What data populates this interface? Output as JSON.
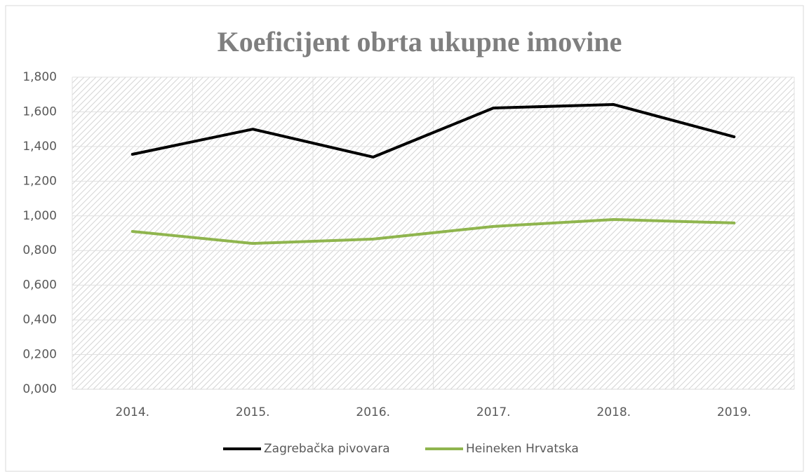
{
  "chart_data": {
    "type": "line",
    "title": "Koeficijent obrta ukupne imovine",
    "categories": [
      "2014.",
      "2015.",
      "2016.",
      "2017.",
      "2018.",
      "2019."
    ],
    "series": [
      {
        "name": "Zagrebačka pivovara",
        "color": "#000000",
        "values": [
          1.355,
          1.5,
          1.339,
          1.622,
          1.642,
          1.456
        ]
      },
      {
        "name": "Heineken Hrvatska",
        "color": "#8fb54e",
        "values": [
          0.91,
          0.841,
          0.866,
          0.939,
          0.979,
          0.959
        ]
      }
    ],
    "ylim": [
      0,
      1.8
    ],
    "yticks": [
      {
        "value": 0,
        "label": "0,000"
      },
      {
        "value": 0.2,
        "label": "0,200"
      },
      {
        "value": 0.4,
        "label": "0,400"
      },
      {
        "value": 0.6,
        "label": "0,600"
      },
      {
        "value": 0.8,
        "label": "0,800"
      },
      {
        "value": 1,
        "label": "1,000"
      },
      {
        "value": 1.2,
        "label": "1,200"
      },
      {
        "value": 1.4,
        "label": "1,400"
      },
      {
        "value": 1.6,
        "label": "1,600"
      },
      {
        "value": 1.8,
        "label": "1,800"
      }
    ],
    "grid": true,
    "legend": "bottom"
  }
}
